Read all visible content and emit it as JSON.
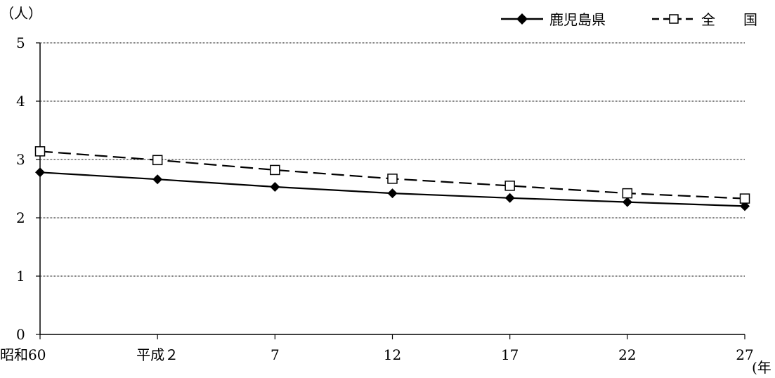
{
  "chart_data": {
    "type": "line",
    "y_unit": "（人）",
    "x_unit": "(年",
    "categories": [
      "昭和60",
      "平成２",
      "7",
      "12",
      "17",
      "22",
      "27"
    ],
    "ylim": [
      0,
      5
    ],
    "yticks": [
      "0",
      "1",
      "2",
      "3",
      "4",
      "5"
    ],
    "grid": true,
    "legend_position": "top-right",
    "series": [
      {
        "name": "鹿児島県",
        "style": "solid",
        "marker": "filled-diamond",
        "color": "#000000",
        "values": [
          2.78,
          2.66,
          2.53,
          2.42,
          2.34,
          2.27,
          2.2
        ]
      },
      {
        "name": "全　　国",
        "style": "dashed",
        "marker": "open-square",
        "color": "#000000",
        "values": [
          3.14,
          2.99,
          2.82,
          2.67,
          2.55,
          2.42,
          2.33
        ]
      }
    ]
  }
}
